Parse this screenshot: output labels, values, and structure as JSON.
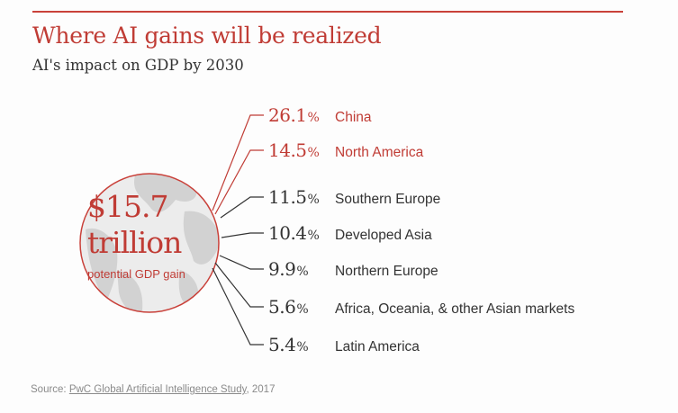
{
  "header": {
    "title": "Where AI gains will be realized",
    "subtitle": "AI's impact on GDP by 2030"
  },
  "center": {
    "amount": "$15.7",
    "unit": "trillion",
    "label": "potential GDP gain"
  },
  "colors": {
    "accent": "#c03c35",
    "text": "#333333",
    "globe_fill": "#e6e6e6",
    "globe_land": "#cccccc",
    "source": "#8a8a8a"
  },
  "chart_data": {
    "type": "table",
    "title": "Where AI gains will be realized",
    "subtitle": "AI's impact on GDP by 2030",
    "total": {
      "value": 15.7,
      "unit": "trillion USD",
      "label": "potential GDP gain"
    },
    "rows": [
      {
        "value": 26.1,
        "display": "26.1",
        "region": "China",
        "highlight": true
      },
      {
        "value": 14.5,
        "display": "14.5",
        "region": "North America",
        "highlight": true
      },
      {
        "value": 11.5,
        "display": "11.5",
        "region": "Southern Europe",
        "highlight": false
      },
      {
        "value": 10.4,
        "display": "10.4",
        "region": "Developed Asia",
        "highlight": false
      },
      {
        "value": 9.9,
        "display": "9.9",
        "region": "Northern Europe",
        "highlight": false
      },
      {
        "value": 5.6,
        "display": "5.6",
        "region": "Africa, Oceania, & other Asian markets",
        "highlight": false
      },
      {
        "value": 5.4,
        "display": "5.4",
        "region": "Latin America",
        "highlight": false
      }
    ],
    "value_unit": "%"
  },
  "source": {
    "prefix": "Source: ",
    "link_text": "PwC Global Artificial Intelligence Study",
    "suffix": ", 2017"
  }
}
